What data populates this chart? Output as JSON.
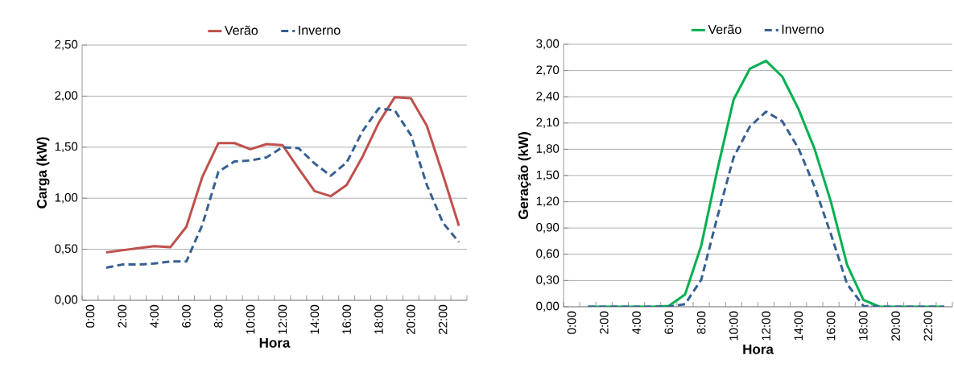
{
  "chart_data": [
    {
      "type": "line",
      "xlabel": "Hora",
      "ylabel": "Carga (kW)",
      "categories": [
        "0:00",
        null,
        "2:00",
        null,
        "4:00",
        null,
        "6:00",
        null,
        "8:00",
        null,
        "10:00",
        null,
        "12:00",
        null,
        "14:00",
        null,
        "16:00",
        null,
        "18:00",
        null,
        "20:00",
        null,
        "22:00",
        null
      ],
      "series": [
        {
          "name": "Verão",
          "color": "#c0504d",
          "line_style": "solid",
          "values": [
            null,
            0.47,
            0.49,
            0.51,
            0.53,
            0.52,
            0.72,
            1.21,
            1.54,
            1.54,
            1.48,
            1.53,
            1.52,
            1.29,
            1.07,
            1.02,
            1.13,
            1.41,
            1.74,
            1.99,
            1.98,
            1.71,
            1.23,
            0.73
          ]
        },
        {
          "name": "Inverno",
          "color": "#376092",
          "line_style": "dashed",
          "values": [
            null,
            0.32,
            0.35,
            0.35,
            0.36,
            0.38,
            0.38,
            0.74,
            1.26,
            1.36,
            1.37,
            1.4,
            1.5,
            1.49,
            1.34,
            1.22,
            1.35,
            1.66,
            1.88,
            1.86,
            1.62,
            1.13,
            0.76,
            0.57
          ]
        }
      ],
      "ylim": [
        0,
        2.5
      ],
      "yticks": [
        {
          "value": 0,
          "label": "0,00"
        },
        {
          "value": 0.5,
          "label": "0,50"
        },
        {
          "value": 1,
          "label": "1,00"
        },
        {
          "value": 1.5,
          "label": "1,50"
        },
        {
          "value": 2,
          "label": "2,00"
        },
        {
          "value": 2.5,
          "label": "2,50"
        }
      ],
      "grid": "y",
      "legend": "top",
      "marker": "none"
    },
    {
      "type": "line",
      "xlabel": "Hora",
      "ylabel": "Geração (kW)",
      "categories": [
        "0:00",
        null,
        "2:00",
        null,
        "4:00",
        null,
        "6:00",
        null,
        "8:00",
        null,
        "10:00",
        null,
        "12:00",
        null,
        "14:00",
        null,
        "16:00",
        null,
        "18:00",
        null,
        "20:00",
        null,
        "22:00",
        null
      ],
      "series": [
        {
          "name": "Verão",
          "color": "#00b050",
          "line_style": "solid",
          "values": [
            null,
            0,
            0,
            0,
            0,
            0,
            0.01,
            0.14,
            0.7,
            1.57,
            2.37,
            2.72,
            2.81,
            2.63,
            2.26,
            1.8,
            1.2,
            0.48,
            0.08,
            0,
            0,
            0,
            0,
            0
          ]
        },
        {
          "name": "Inverno",
          "color": "#376092",
          "line_style": "dashed",
          "values": [
            null,
            0,
            0,
            0,
            0,
            0,
            0,
            0.03,
            0.31,
            1.03,
            1.71,
            2.06,
            2.23,
            2.12,
            1.81,
            1.37,
            0.83,
            0.26,
            0.01,
            0,
            0,
            0,
            0,
            0
          ]
        }
      ],
      "ylim": [
        0,
        3
      ],
      "yticks": [
        {
          "value": 0,
          "label": "0,00"
        },
        {
          "value": 0.3,
          "label": "0,30"
        },
        {
          "value": 0.6,
          "label": "0,60"
        },
        {
          "value": 0.9,
          "label": "0,90"
        },
        {
          "value": 1.2,
          "label": "1,20"
        },
        {
          "value": 1.5,
          "label": "1,50"
        },
        {
          "value": 1.8,
          "label": "1,80"
        },
        {
          "value": 2.1,
          "label": "2,10"
        },
        {
          "value": 2.4,
          "label": "2,40"
        },
        {
          "value": 2.7,
          "label": "2,70"
        },
        {
          "value": 3,
          "label": "3,00"
        }
      ],
      "grid": "y",
      "legend": "top",
      "marker": "none"
    }
  ]
}
